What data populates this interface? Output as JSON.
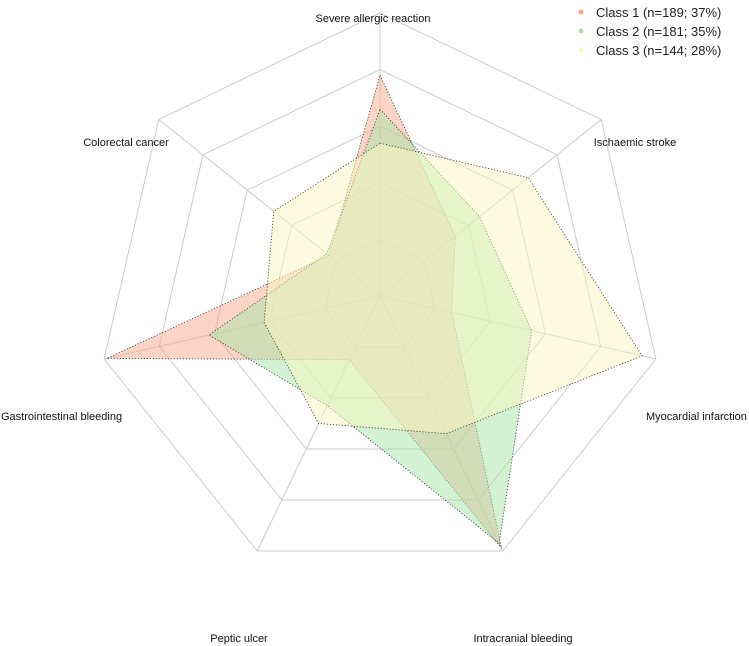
{
  "chart_data": {
    "type": "radar",
    "axes": [
      "Severe allergic reaction",
      "Ischaemic stroke",
      "Myocardial infarction",
      "Intracranial bleeding",
      "Peptic ulcer",
      "Gastrointestinal bleeding",
      "Colorectal cancer"
    ],
    "range": [
      0,
      1
    ],
    "grid_levels": 5,
    "legend_position": "top-right",
    "series": [
      {
        "name": "Class 1 (n=189; 37%)",
        "color": "#F9A98B",
        "values": [
          0.78,
          0.34,
          0.26,
          0.99,
          0.25,
          0.99,
          0.23
        ]
      },
      {
        "name": "Class 2 (n=181; 35%)",
        "color": "#A8E3A8",
        "values": [
          0.66,
          0.45,
          0.55,
          0.97,
          0.43,
          0.62,
          0.24
        ]
      },
      {
        "name": "Class 3 (n=144; 28%)",
        "color": "#FAF7C2",
        "values": [
          0.54,
          0.67,
          0.95,
          0.54,
          0.5,
          0.42,
          0.48
        ]
      }
    ]
  }
}
